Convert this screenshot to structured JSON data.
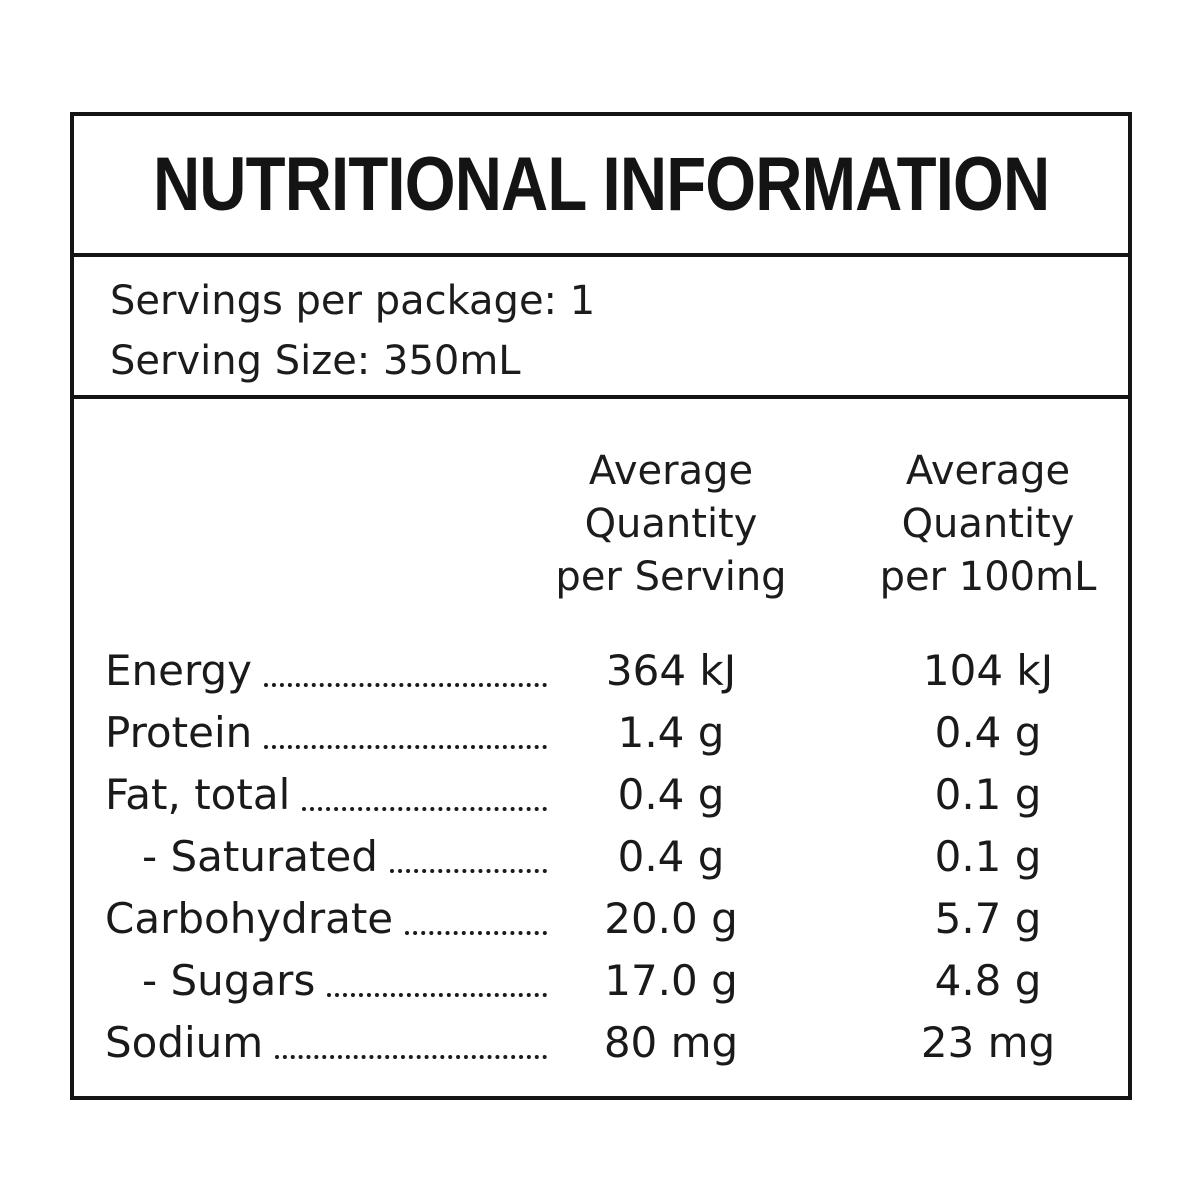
{
  "label": {
    "title": "NUTRITIONAL INFORMATION",
    "servings_per_package": "Servings per package: 1",
    "serving_size": "Serving Size: 350mL",
    "columns": [
      {
        "label": "Average Quantity per Serving",
        "lines": [
          "Average",
          "Quantity",
          "per Serving"
        ]
      },
      {
        "label": "Average Quantity per 100mL",
        "lines": [
          "Average",
          "Quantity",
          "per 100mL"
        ]
      }
    ],
    "rows": [
      {
        "name": "Energy",
        "indent": false,
        "per_serving": "364 kJ",
        "per_100ml": "104 kJ"
      },
      {
        "name": "Protein",
        "indent": false,
        "per_serving": "1.4 g",
        "per_100ml": "0.4 g"
      },
      {
        "name": "Fat, total",
        "indent": false,
        "per_serving": "0.4 g",
        "per_100ml": "0.1 g"
      },
      {
        "name": "- Saturated",
        "indent": true,
        "per_serving": "0.4 g",
        "per_100ml": "0.1 g"
      },
      {
        "name": "Carbohydrate",
        "indent": false,
        "per_serving": "20.0 g",
        "per_100ml": "5.7 g"
      },
      {
        "name": "- Sugars",
        "indent": true,
        "per_serving": "17.0 g",
        "per_100ml": "4.8 g"
      },
      {
        "name": "Sodium",
        "indent": false,
        "per_serving": "80 mg",
        "per_100ml": "23 mg"
      }
    ],
    "colors": {
      "border": "#141414",
      "text": "#1a1a1a",
      "background": "#ffffff"
    }
  }
}
